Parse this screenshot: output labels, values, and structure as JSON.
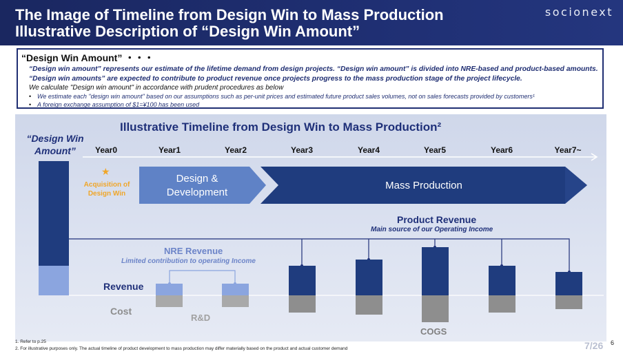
{
  "header": {
    "title_line1": "The Image of Timeline from Design Win to Mass Production",
    "title_line2": "Illustrative Description of “Design Win Amount”",
    "brand": "socionext"
  },
  "definition": {
    "heading": "“Design Win Amount” ・・・",
    "paragraph": "“Design win amount” represents our estimate of the lifetime demand from design projects. “Design win amount” is divided into NRE-based and product-based amounts. “Design win amounts” are expected to contribute to product revenue once projects progress to the mass production stage of the project lifecycle.",
    "procedure": "We calculate \"Design win amount\" in accordance with prudent procedures as below",
    "bullets": [
      "We estimate each \"design win amount\" based on our assumptions such as per-unit prices and estimated future product sales volumes, not on sales forecasts provided by customers¹",
      "A foreign exchange assumption of $1=¥100 has been used"
    ]
  },
  "chart": {
    "title": "Illustrative Timeline from Design Win to Mass Production²",
    "dwa_label_1": "“Design Win",
    "dwa_label_2": "Amount”",
    "years": [
      "Year0",
      "Year1",
      "Year2",
      "Year3",
      "Year4",
      "Year5",
      "Year6",
      "Year7~"
    ],
    "star": "★",
    "acquisition_1": "Acquisition of",
    "acquisition_2": "Design Win",
    "phase_design_1": "Design &",
    "phase_design_2": "Development",
    "phase_mass": "Mass Production",
    "product_revenue": "Product Revenue",
    "product_revenue_sub": "Main source of our Operating Income",
    "nre_revenue": "NRE Revenue",
    "nre_revenue_sub": "Limited contribution to operating Income",
    "revenue": "Revenue",
    "cost": "Cost",
    "rnd": "R&D",
    "cogs": "COGS"
  },
  "footnotes": [
    "1.    Refer to p.25",
    "2.    For illustrative purposes only. The actual timeline of product development to mass production may differ materially based on the product and actual customer demand"
  ],
  "page": {
    "indicator": "7/26",
    "number": "6"
  }
}
